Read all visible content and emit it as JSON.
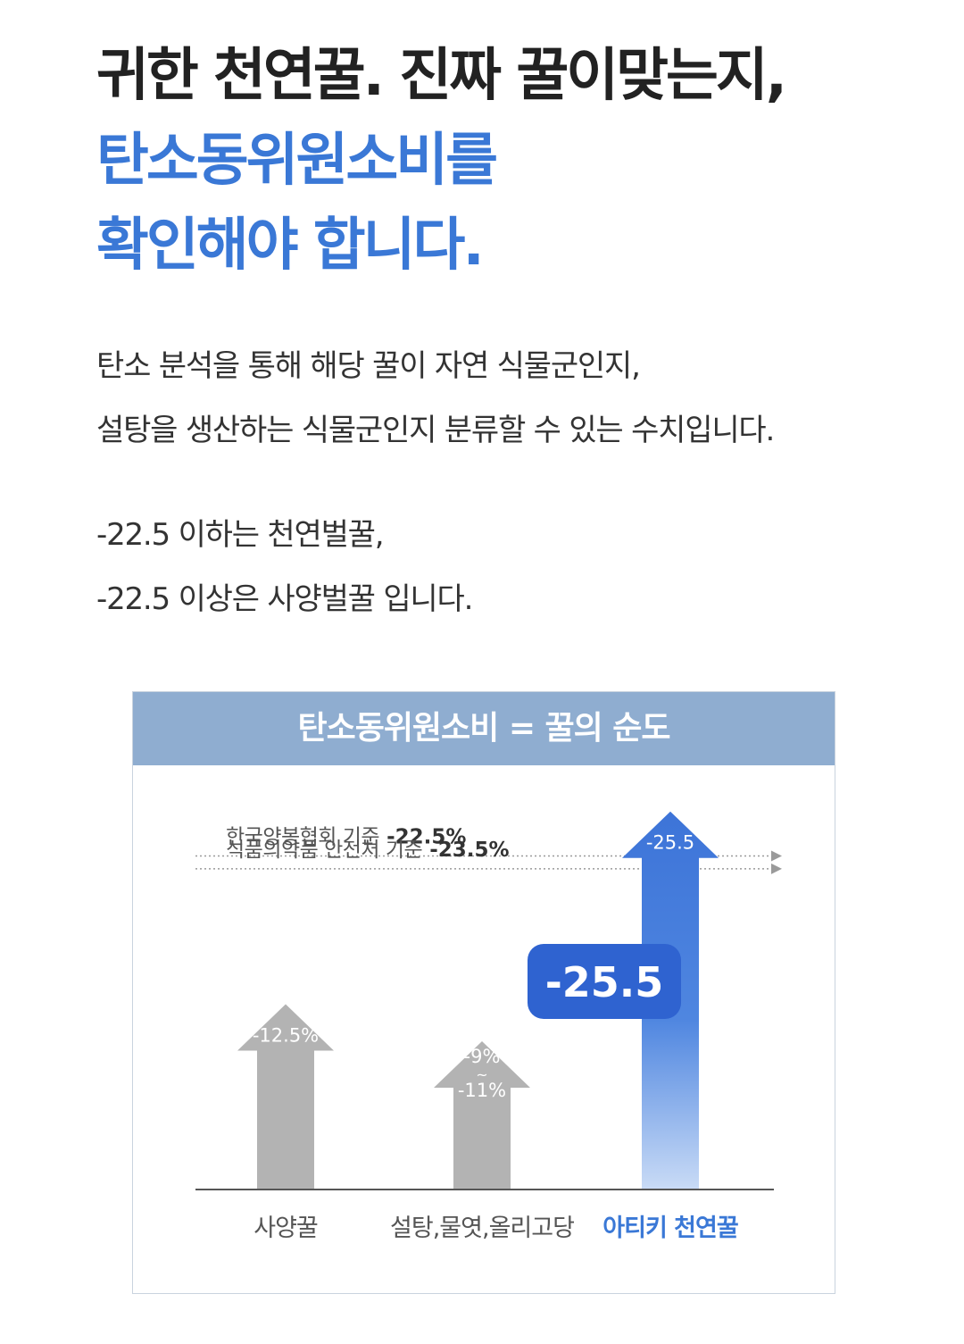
{
  "headline": {
    "line1": "귀한 천연꿀. 진짜 꿀이맞는지,",
    "line2": "탄소동위원소비를",
    "line3": "확인해야 합니다."
  },
  "description": {
    "line1": "탄소 분석을 통해 해당 꿀이 자연 식물군인지,",
    "line2": "설탕을 생산하는 식물군인지 분류할 수 있는 수치입니다.",
    "line3": "-22.5 이하는 천연벌꿀,",
    "line4": "-22.5 이상은 사양벌꿀 입니다."
  },
  "colors": {
    "accent": "#3a78d6",
    "card_header": "#8fadd0",
    "gray_arrow": "#b3b3b3",
    "blue_arrow": "#3d74d8"
  },
  "chart_data": {
    "type": "bar",
    "title": "탄소동위원소비 = 꿀의 순도",
    "categories": [
      "사양꿀",
      "설탕,물엿,올리고당",
      "아티키 천연꿀"
    ],
    "values": [
      -12.5,
      -10,
      -25.5
    ],
    "value_labels": [
      "-12.5%",
      "-9%\n~\n-11%",
      "-25.5"
    ],
    "ranges": [
      null,
      [
        -9,
        -11
      ],
      null
    ],
    "highlight": {
      "category": "아티키 천연꿀",
      "value": -25.5,
      "label": "-25.5"
    },
    "reference_lines": [
      {
        "label": "한국양봉협회 기준",
        "value_label": "-22.5%",
        "value": -22.5
      },
      {
        "label": "식품의약품 안전처 기준",
        "value_label": "-23.5%",
        "value": -23.5
      }
    ]
  }
}
